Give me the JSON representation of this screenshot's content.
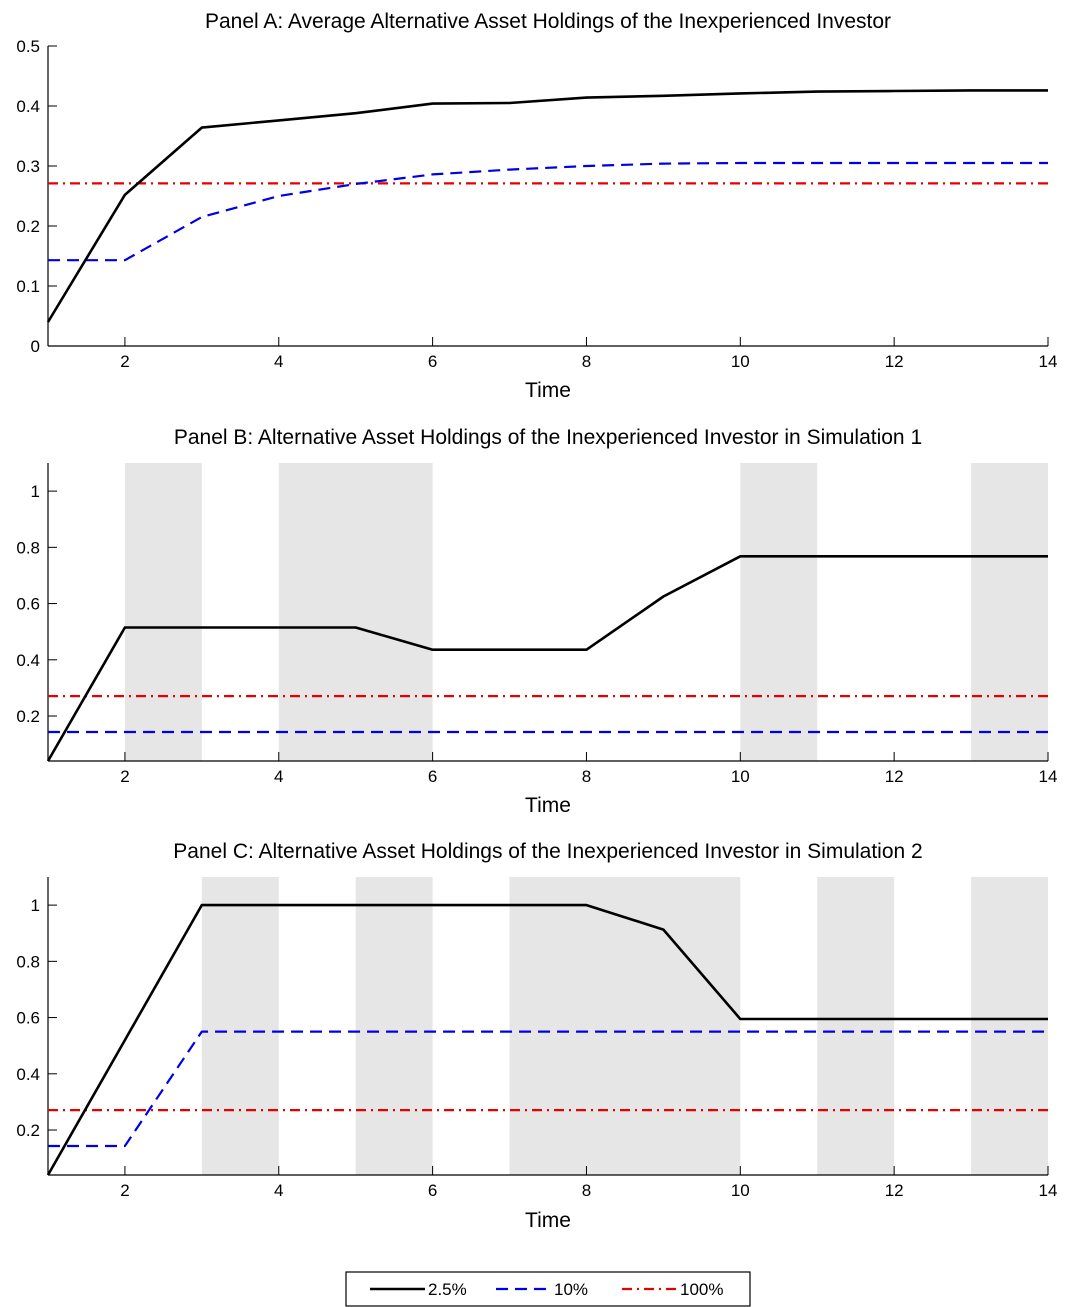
{
  "legend": {
    "entries": [
      {
        "label": "2.5%",
        "color": "#000000",
        "style": "solid"
      },
      {
        "label": "10%",
        "color": "#0000e6",
        "style": "dashed"
      },
      {
        "label": "100%",
        "color": "#e60000",
        "style": "dashdot"
      }
    ],
    "placement": "bottom-center"
  },
  "chart_data": [
    {
      "type": "line",
      "title": "Panel A: Average Alternative Asset Holdings of the Inexperienced Investor",
      "xlabel": "Time",
      "ylabel": "",
      "xlim": [
        1,
        14
      ],
      "ylim": [
        0,
        0.5
      ],
      "xticks": [
        2,
        4,
        6,
        8,
        10,
        12,
        14
      ],
      "yticks": [
        0,
        0.1,
        0.2,
        0.3,
        0.4,
        0.5
      ],
      "ytick_labels": [
        "0",
        "0.1",
        "0.2",
        "0.3",
        "0.4",
        "0.5"
      ],
      "grid": false,
      "shaded_intervals": [],
      "x": [
        1,
        2,
        3,
        4,
        5,
        6,
        7,
        8,
        9,
        10,
        11,
        12,
        13,
        14
      ],
      "series": [
        {
          "name": "2.5%",
          "values": [
            0.04,
            0.252,
            0.364,
            0.376,
            0.388,
            0.404,
            0.405,
            0.414,
            0.417,
            0.421,
            0.424,
            0.425,
            0.426,
            0.426
          ]
        },
        {
          "name": "10%",
          "values": [
            0.143,
            0.143,
            0.215,
            0.25,
            0.27,
            0.286,
            0.294,
            0.3,
            0.304,
            0.305,
            0.305,
            0.305,
            0.305,
            0.305
          ]
        },
        {
          "name": "100%",
          "values": [
            0.271,
            0.271,
            0.271,
            0.271,
            0.271,
            0.271,
            0.271,
            0.271,
            0.271,
            0.271,
            0.271,
            0.271,
            0.271,
            0.271
          ]
        }
      ]
    },
    {
      "type": "line",
      "title": "Panel B: Alternative Asset Holdings of the Inexperienced Investor in Simulation 1",
      "xlabel": "Time",
      "ylabel": "",
      "xlim": [
        1,
        14
      ],
      "ylim": [
        0.04,
        1.1
      ],
      "xticks": [
        2,
        4,
        6,
        8,
        10,
        12,
        14
      ],
      "yticks": [
        0.2,
        0.4,
        0.6,
        0.8,
        1
      ],
      "ytick_labels": [
        "0.2",
        "0.4",
        "0.6",
        "0.8",
        "1"
      ],
      "grid": false,
      "shaded_intervals": [
        [
          2,
          3
        ],
        [
          4,
          6
        ],
        [
          10,
          11
        ],
        [
          13,
          14
        ]
      ],
      "x": [
        1,
        2,
        3,
        4,
        5,
        6,
        7,
        8,
        9,
        10,
        11,
        12,
        13,
        14
      ],
      "series": [
        {
          "name": "2.5%",
          "values": [
            0.04,
            0.515,
            0.515,
            0.515,
            0.515,
            0.436,
            0.436,
            0.436,
            0.625,
            0.768,
            0.768,
            0.768,
            0.768,
            0.768
          ]
        },
        {
          "name": "10%",
          "values": [
            0.143,
            0.143,
            0.143,
            0.143,
            0.143,
            0.143,
            0.143,
            0.143,
            0.143,
            0.143,
            0.143,
            0.143,
            0.143,
            0.143
          ]
        },
        {
          "name": "100%",
          "values": [
            0.271,
            0.271,
            0.271,
            0.271,
            0.271,
            0.271,
            0.271,
            0.271,
            0.271,
            0.271,
            0.271,
            0.271,
            0.271,
            0.271
          ]
        }
      ]
    },
    {
      "type": "line",
      "title": "Panel C: Alternative Asset Holdings of the Inexperienced Investor in Simulation 2",
      "xlabel": "Time",
      "ylabel": "",
      "xlim": [
        1,
        14
      ],
      "ylim": [
        0.04,
        1.1
      ],
      "xticks": [
        2,
        4,
        6,
        8,
        10,
        12,
        14
      ],
      "yticks": [
        0.2,
        0.4,
        0.6,
        0.8,
        1
      ],
      "ytick_labels": [
        "0.2",
        "0.4",
        "0.6",
        "0.8",
        "1"
      ],
      "grid": false,
      "shaded_intervals": [
        [
          3,
          4
        ],
        [
          5,
          6
        ],
        [
          7,
          10
        ],
        [
          11,
          12
        ],
        [
          13,
          14
        ]
      ],
      "x": [
        1,
        2,
        3,
        4,
        5,
        6,
        7,
        8,
        9,
        10,
        11,
        12,
        13,
        14
      ],
      "series": [
        {
          "name": "2.5%",
          "values": [
            0.04,
            0.52,
            1.0,
            1.0,
            1.0,
            1.0,
            1.0,
            1.0,
            0.913,
            0.595,
            0.595,
            0.595,
            0.595,
            0.595
          ]
        },
        {
          "name": "10%",
          "values": [
            0.143,
            0.143,
            0.55,
            0.55,
            0.55,
            0.55,
            0.55,
            0.55,
            0.55,
            0.55,
            0.55,
            0.55,
            0.55,
            0.55
          ]
        },
        {
          "name": "100%",
          "values": [
            0.271,
            0.271,
            0.271,
            0.271,
            0.271,
            0.271,
            0.271,
            0.271,
            0.271,
            0.271,
            0.271,
            0.271,
            0.271,
            0.271
          ]
        }
      ]
    }
  ]
}
